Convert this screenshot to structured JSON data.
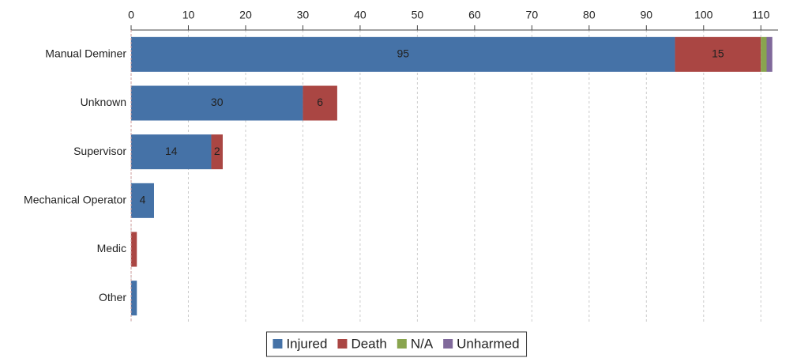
{
  "chart_data": {
    "type": "bar",
    "orientation": "horizontal",
    "stacked": true,
    "categories": [
      "Manual Deminer",
      "Unknown",
      "Supervisor",
      "Mechanical Operator",
      "Medic",
      "Other"
    ],
    "series": [
      {
        "name": "Injured",
        "color": "#4572a7",
        "values": [
          95,
          30,
          14,
          4,
          0,
          1
        ]
      },
      {
        "name": "Death",
        "color": "#aa4643",
        "values": [
          15,
          6,
          2,
          0,
          1,
          0
        ]
      },
      {
        "name": "N/A",
        "color": "#89a54e",
        "values": [
          1,
          0,
          0,
          0,
          0,
          0
        ]
      },
      {
        "name": "Unharmed",
        "color": "#80699b",
        "values": [
          1,
          0,
          0,
          0,
          0,
          0
        ]
      }
    ],
    "xlim": [
      0,
      113
    ],
    "xticks": [
      0,
      10,
      20,
      30,
      40,
      50,
      60,
      70,
      80,
      90,
      100,
      110
    ],
    "grid": true
  }
}
